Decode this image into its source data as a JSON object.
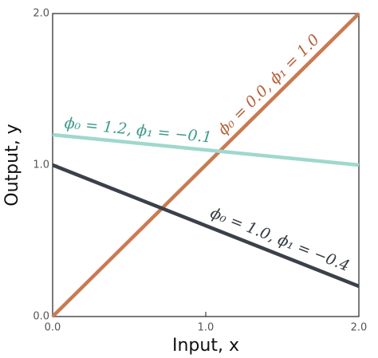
{
  "chart_data": {
    "type": "line",
    "x_label": "Input, x",
    "y_label": "Output, y",
    "x": [
      0,
      2
    ],
    "series": [
      {
        "name": "ϕ₀ = 0.0, ϕ₁ = 1.0",
        "color": "#c97a53",
        "label_color": "#b5603a",
        "values": [
          0,
          2
        ]
      },
      {
        "name": "ϕ₀ = 1.2, ϕ₁ = −0.1",
        "color": "#9fd8cd",
        "label_color": "#3f9a8c",
        "values": [
          1.2,
          1.0
        ]
      },
      {
        "name": "ϕ₀ = 1.0, ϕ₁ = −0.4",
        "color": "#3b4149",
        "label_color": "#333a42",
        "values": [
          1.0,
          0.2
        ]
      }
    ],
    "xlim": [
      0,
      2
    ],
    "ylim": [
      0,
      2
    ],
    "xticks": [
      {
        "value": 0,
        "label": "0.0"
      },
      {
        "value": 1,
        "label": "1.0"
      },
      {
        "value": 2,
        "label": "2.0"
      }
    ],
    "yticks": [
      {
        "value": 0,
        "label": "0.0"
      },
      {
        "value": 1,
        "label": "1.0"
      },
      {
        "value": 2,
        "label": "2.0"
      }
    ]
  }
}
